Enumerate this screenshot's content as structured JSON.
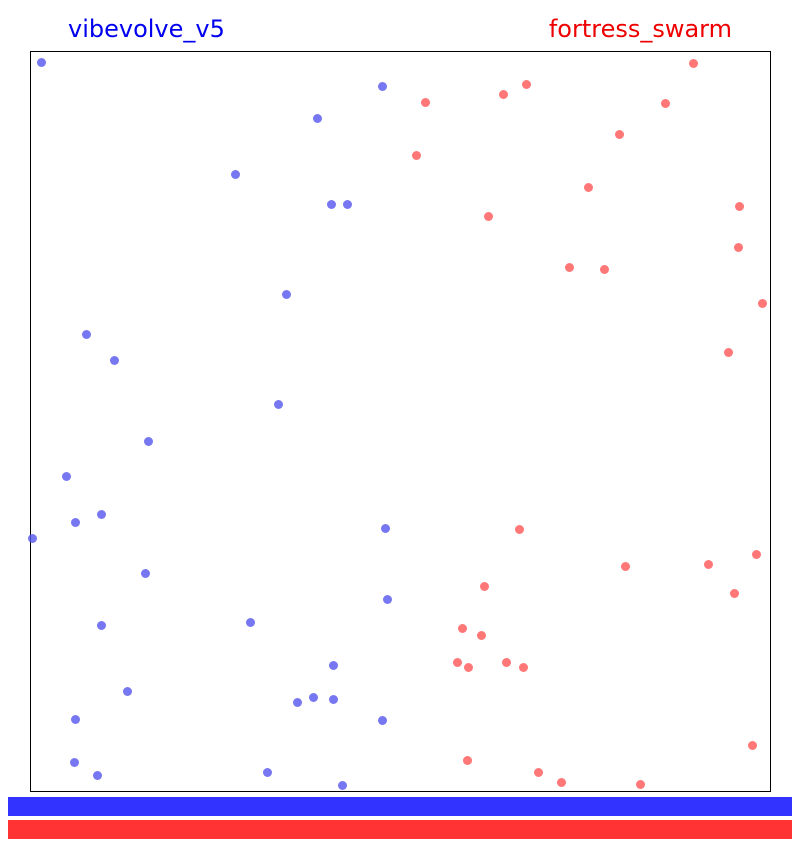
{
  "players": {
    "left": {
      "name": "vibevolve_v5",
      "color": "#0000ee"
    },
    "right": {
      "name": "fortress_swarm",
      "color": "#ee0000"
    }
  },
  "bars": {
    "blue": {
      "color": "#3333ff",
      "fill": 1.0
    },
    "red": {
      "color": "#ff3333",
      "fill": 1.0
    }
  },
  "arena": {
    "width": 740,
    "height": 740
  },
  "units": {
    "blue": {
      "color": "#5555ee",
      "points": [
        [
          11,
          11
        ],
        [
          352,
          35
        ],
        [
          287,
          67
        ],
        [
          205,
          123
        ],
        [
          301,
          153
        ],
        [
          317,
          153
        ],
        [
          256,
          243
        ],
        [
          56,
          283
        ],
        [
          84,
          309
        ],
        [
          248,
          353
        ],
        [
          118,
          390
        ],
        [
          36,
          425
        ],
        [
          45,
          471
        ],
        [
          71,
          463
        ],
        [
          2,
          487
        ],
        [
          355,
          477
        ],
        [
          115,
          522
        ],
        [
          357,
          548
        ],
        [
          71,
          574
        ],
        [
          220,
          571
        ],
        [
          303,
          614
        ],
        [
          97,
          640
        ],
        [
          267,
          651
        ],
        [
          283,
          646
        ],
        [
          303,
          648
        ],
        [
          45,
          668
        ],
        [
          352,
          669
        ],
        [
          44,
          711
        ],
        [
          67,
          724
        ],
        [
          237,
          721
        ],
        [
          312,
          734
        ]
      ]
    },
    "red": {
      "color": "#ff5555",
      "points": [
        [
          663,
          12
        ],
        [
          496,
          33
        ],
        [
          473,
          43
        ],
        [
          395,
          51
        ],
        [
          635,
          52
        ],
        [
          589,
          83
        ],
        [
          386,
          104
        ],
        [
          558,
          136
        ],
        [
          458,
          165
        ],
        [
          709,
          155
        ],
        [
          708,
          196
        ],
        [
          539,
          216
        ],
        [
          574,
          218
        ],
        [
          732,
          252
        ],
        [
          698,
          301
        ],
        [
          489,
          478
        ],
        [
          726,
          503
        ],
        [
          595,
          515
        ],
        [
          678,
          513
        ],
        [
          704,
          542
        ],
        [
          454,
          535
        ],
        [
          432,
          577
        ],
        [
          451,
          584
        ],
        [
          427,
          611
        ],
        [
          438,
          616
        ],
        [
          476,
          611
        ],
        [
          493,
          616
        ],
        [
          722,
          694
        ],
        [
          437,
          709
        ],
        [
          508,
          721
        ],
        [
          531,
          731
        ],
        [
          610,
          733
        ]
      ]
    }
  }
}
